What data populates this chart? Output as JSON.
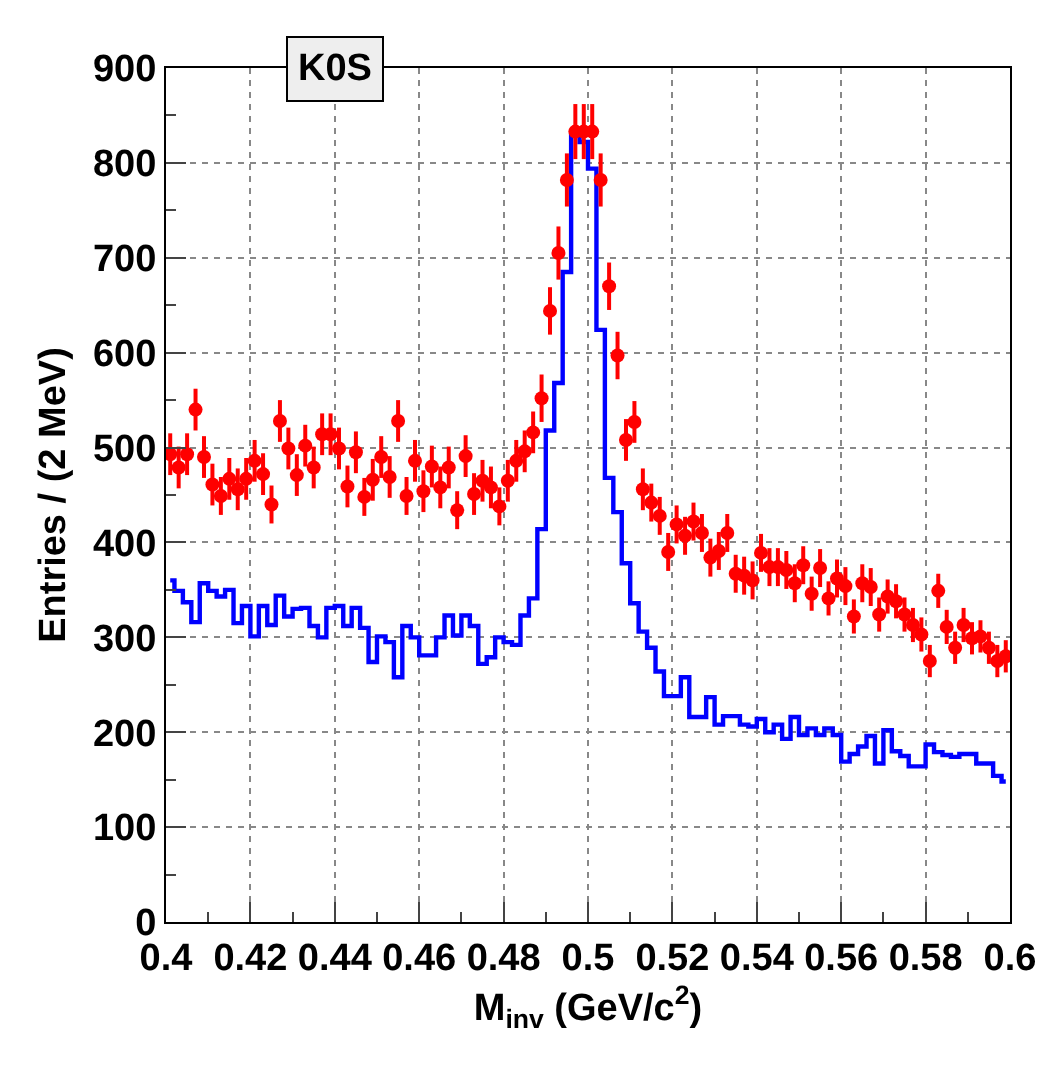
{
  "chart_data": {
    "type": "scatter",
    "title": "K0S",
    "xlabel": "M$_{inv}$ (GeV/c$^{2}$)",
    "ylabel": "Entries / (2 MeV)",
    "x": [
      0.401,
      0.403,
      0.405,
      0.407,
      0.409,
      0.411,
      0.413,
      0.415,
      0.417,
      0.419,
      0.421,
      0.423,
      0.425,
      0.427,
      0.429,
      0.431,
      0.433,
      0.435,
      0.437,
      0.439,
      0.441,
      0.443,
      0.445,
      0.447,
      0.449,
      0.451,
      0.453,
      0.455,
      0.457,
      0.459,
      0.461,
      0.463,
      0.465,
      0.467,
      0.469,
      0.471,
      0.473,
      0.475,
      0.477,
      0.479,
      0.481,
      0.483,
      0.485,
      0.487,
      0.489,
      0.491,
      0.493,
      0.495,
      0.497,
      0.499,
      0.501,
      0.503,
      0.505,
      0.507,
      0.509,
      0.511,
      0.513,
      0.515,
      0.517,
      0.519,
      0.521,
      0.523,
      0.525,
      0.527,
      0.529,
      0.531,
      0.533,
      0.535,
      0.537,
      0.539,
      0.541,
      0.543,
      0.545,
      0.547,
      0.549,
      0.551,
      0.553,
      0.555,
      0.557,
      0.559,
      0.561,
      0.563,
      0.565,
      0.567,
      0.569,
      0.571,
      0.573,
      0.575,
      0.577,
      0.579,
      0.581,
      0.583,
      0.585,
      0.587,
      0.589,
      0.591,
      0.593,
      0.595,
      0.597,
      0.599
    ],
    "series": [
      {
        "type": "step",
        "color": "#0000ff",
        "values": [
          360,
          349,
          337,
          316,
          357,
          349,
          343,
          350,
          315,
          333,
          301,
          333,
          313,
          344,
          322,
          330,
          331,
          312,
          300,
          331,
          333,
          312,
          331,
          310,
          274,
          301,
          295,
          258,
          312,
          300,
          281,
          281,
          300,
          323,
          302,
          323,
          312,
          272,
          279,
          300,
          295,
          292,
          323,
          341,
          414,
          518,
          568,
          685,
          829,
          822,
          794,
          624,
          468,
          432,
          378,
          336,
          306,
          289,
          264,
          238,
          238,
          258,
          216,
          216,
          237,
          208,
          217,
          217,
          208,
          206,
          214,
          200,
          208,
          193,
          216,
          197,
          204,
          197,
          204,
          197,
          169,
          177,
          185,
          196,
          167,
          202,
          180,
          175,
          164,
          164,
          187,
          179,
          176,
          174,
          177,
          177,
          167,
          167,
          154,
          148
        ]
      },
      {
        "color": "#ff0000",
        "marker": "circle",
        "values": [
          493,
          479,
          493,
          540,
          490,
          461,
          449,
          467,
          456,
          467,
          486,
          472,
          440,
          528,
          499,
          471,
          502,
          479,
          514,
          514,
          499,
          459,
          495,
          448,
          466,
          490,
          469,
          528,
          449,
          486,
          454,
          480,
          458,
          479,
          434,
          491,
          451,
          465,
          458,
          438,
          465,
          486,
          496,
          516,
          552,
          644,
          705,
          782,
          833,
          833,
          833,
          782,
          670,
          597,
          508,
          527,
          456,
          442,
          428,
          390,
          419,
          407,
          422,
          410,
          384,
          391,
          410,
          367,
          365,
          360,
          389,
          374,
          374,
          371,
          357,
          376,
          346,
          373,
          341,
          362,
          354,
          322,
          357,
          353,
          324,
          343,
          338,
          324,
          313,
          303,
          275,
          349,
          311,
          289,
          313,
          299,
          301,
          289,
          275,
          280
        ],
        "errors": [
          22,
          22,
          22,
          22,
          22,
          22,
          20,
          22,
          22,
          22,
          22,
          22,
          20,
          22,
          22,
          22,
          22,
          22,
          22,
          22,
          22,
          22,
          22,
          20,
          22,
          22,
          22,
          22,
          20,
          22,
          22,
          22,
          22,
          22,
          20,
          22,
          22,
          22,
          22,
          20,
          22,
          22,
          22,
          22,
          25,
          25,
          28,
          28,
          29,
          29,
          29,
          28,
          25,
          25,
          22,
          22,
          22,
          20,
          20,
          20,
          20,
          20,
          20,
          20,
          20,
          20,
          20,
          20,
          20,
          20,
          20,
          20,
          20,
          20,
          20,
          20,
          18,
          20,
          18,
          20,
          20,
          18,
          20,
          20,
          18,
          18,
          18,
          18,
          18,
          18,
          17,
          18,
          18,
          17,
          18,
          17,
          17,
          17,
          17,
          17
        ]
      }
    ],
    "xlim": [
      0.4,
      0.6
    ],
    "xticks": [
      0.4,
      0.42,
      0.44,
      0.46,
      0.48,
      0.5,
      0.52,
      0.54,
      0.56,
      0.58,
      0.6
    ],
    "ylim": [
      0,
      900
    ],
    "yticks": [
      0,
      100,
      200,
      300,
      400,
      500,
      600,
      700,
      800,
      900
    ],
    "grid": true
  }
}
